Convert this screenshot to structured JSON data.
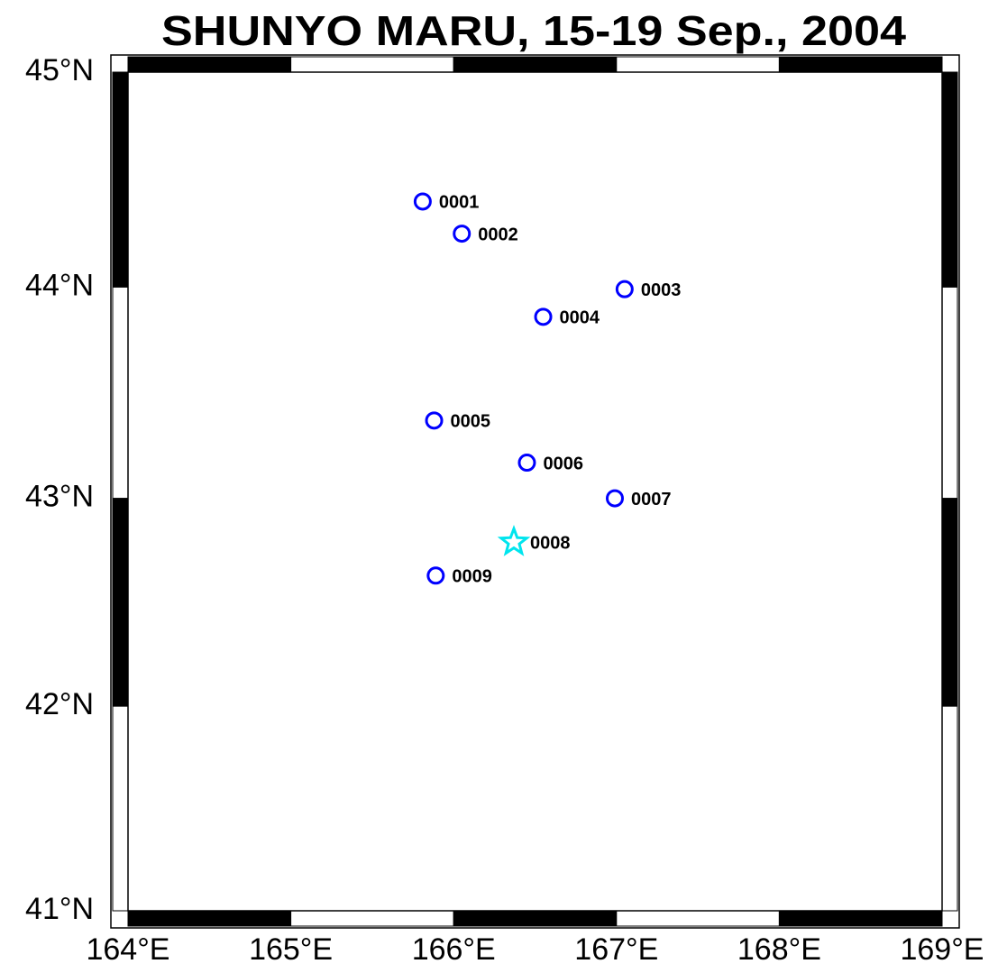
{
  "chart_data": {
    "type": "scatter",
    "title": "SHUNYO MARU, 15-19 Sep., 2004",
    "x": [
      165.81,
      166.05,
      167.05,
      166.55,
      165.88,
      166.45,
      166.99,
      166.37,
      165.89
    ],
    "values": [
      44.4,
      44.25,
      43.99,
      43.86,
      43.37,
      43.17,
      43.0,
      42.79,
      42.63
    ],
    "point_labels": [
      "0001",
      "0002",
      "0003",
      "0004",
      "0005",
      "0006",
      "0007",
      "0008",
      "0009"
    ],
    "markers": [
      "circle",
      "circle",
      "circle",
      "circle",
      "circle",
      "circle",
      "circle",
      "star",
      "circle"
    ],
    "colors": [
      "#0000ff",
      "#0000ff",
      "#0000ff",
      "#0000ff",
      "#0000ff",
      "#0000ff",
      "#0000ff",
      "#00e5ee",
      "#0000ff"
    ],
    "projection": "mercator",
    "xlim": [
      164,
      169
    ],
    "ylim": [
      41,
      45
    ],
    "xticks": [
      {
        "value": 164,
        "label": "164°E"
      },
      {
        "value": 165,
        "label": "165°E"
      },
      {
        "value": 166,
        "label": "166°E"
      },
      {
        "value": 167,
        "label": "167°E"
      },
      {
        "value": 168,
        "label": "168°E"
      },
      {
        "value": 169,
        "label": "169°E"
      }
    ],
    "yticks": [
      {
        "value": 41,
        "label": "41°N"
      },
      {
        "value": 42,
        "label": "42°N"
      },
      {
        "value": 43,
        "label": "43°N"
      },
      {
        "value": 44,
        "label": "44°N"
      },
      {
        "value": 45,
        "label": "45°N"
      }
    ]
  }
}
